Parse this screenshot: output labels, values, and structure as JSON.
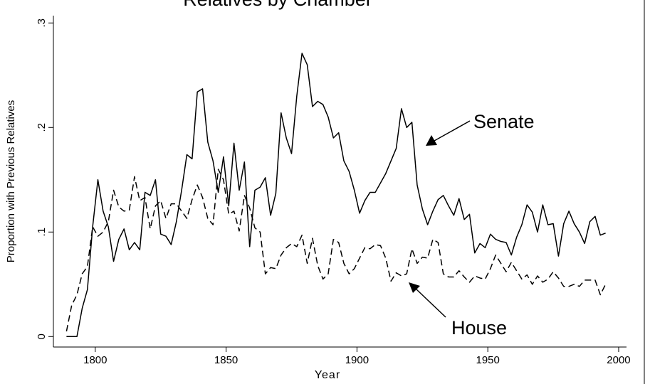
{
  "chart_data": {
    "type": "line",
    "title": "Relatives by Chamber",
    "x_label": "Year",
    "y_label": "Proportion with Previous Relatives",
    "x": [
      1789,
      1791,
      1793,
      1795,
      1797,
      1799,
      1801,
      1803,
      1805,
      1807,
      1809,
      1811,
      1813,
      1815,
      1817,
      1819,
      1821,
      1823,
      1825,
      1827,
      1829,
      1831,
      1833,
      1835,
      1837,
      1839,
      1841,
      1843,
      1845,
      1847,
      1849,
      1851,
      1853,
      1855,
      1857,
      1859,
      1861,
      1863,
      1865,
      1867,
      1869,
      1871,
      1873,
      1875,
      1877,
      1879,
      1881,
      1883,
      1885,
      1887,
      1889,
      1891,
      1893,
      1895,
      1897,
      1899,
      1901,
      1903,
      1905,
      1907,
      1909,
      1911,
      1913,
      1915,
      1917,
      1919,
      1921,
      1923,
      1925,
      1927,
      1929,
      1931,
      1933,
      1935,
      1937,
      1939,
      1941,
      1943,
      1945,
      1947,
      1949,
      1951,
      1953,
      1955,
      1957,
      1959,
      1961,
      1963,
      1965,
      1967,
      1969,
      1971,
      1973,
      1975,
      1977,
      1979,
      1981,
      1983,
      1985,
      1987,
      1989,
      1991,
      1993,
      1995
    ],
    "series": [
      {
        "name": "Senate",
        "color": "#000000",
        "line_style": "solid",
        "values": [
          0,
          0,
          0,
          0.027,
          0.045,
          0.105,
          0.15,
          0.12,
          0.105,
          0.072,
          0.093,
          0.103,
          0.083,
          0.09,
          0.083,
          0.138,
          0.135,
          0.15,
          0.098,
          0.096,
          0.088,
          0.11,
          0.14,
          0.174,
          0.17,
          0.234,
          0.237,
          0.186,
          0.168,
          0.138,
          0.172,
          0.125,
          0.185,
          0.14,
          0.167,
          0.086,
          0.14,
          0.143,
          0.152,
          0.116,
          0.137,
          0.214,
          0.19,
          0.175,
          0.23,
          0.271,
          0.26,
          0.22,
          0.225,
          0.222,
          0.21,
          0.19,
          0.195,
          0.168,
          0.158,
          0.14,
          0.118,
          0.13,
          0.138,
          0.138,
          0.147,
          0.156,
          0.168,
          0.18,
          0.218,
          0.2,
          0.205,
          0.145,
          0.122,
          0.107,
          0.12,
          0.131,
          0.135,
          0.125,
          0.116,
          0.132,
          0.112,
          0.117,
          0.08,
          0.089,
          0.085,
          0.098,
          0.093,
          0.091,
          0.09,
          0.078,
          0.095,
          0.107,
          0.126,
          0.119,
          0.1,
          0.126,
          0.107,
          0.108,
          0.077,
          0.108,
          0.12,
          0.108,
          0.1,
          0.089,
          0.11,
          0.115,
          0.097,
          0.099
        ]
      },
      {
        "name": "House",
        "color": "#000000",
        "line_style": "dashed",
        "values": [
          0.005,
          0.03,
          0.04,
          0.06,
          0.067,
          0.105,
          0.096,
          0.1,
          0.11,
          0.14,
          0.124,
          0.12,
          0.121,
          0.153,
          0.13,
          0.133,
          0.103,
          0.125,
          0.13,
          0.113,
          0.127,
          0.127,
          0.12,
          0.113,
          0.131,
          0.145,
          0.133,
          0.113,
          0.107,
          0.16,
          0.15,
          0.117,
          0.12,
          0.101,
          0.135,
          0.123,
          0.104,
          0.1,
          0.06,
          0.066,
          0.065,
          0.078,
          0.085,
          0.089,
          0.086,
          0.097,
          0.07,
          0.094,
          0.068,
          0.055,
          0.06,
          0.093,
          0.09,
          0.07,
          0.06,
          0.065,
          0.075,
          0.085,
          0.084,
          0.088,
          0.087,
          0.075,
          0.053,
          0.061,
          0.058,
          0.06,
          0.084,
          0.07,
          0.076,
          0.075,
          0.093,
          0.09,
          0.06,
          0.057,
          0.057,
          0.063,
          0.057,
          0.052,
          0.058,
          0.056,
          0.055,
          0.065,
          0.078,
          0.07,
          0.062,
          0.071,
          0.063,
          0.055,
          0.059,
          0.05,
          0.058,
          0.052,
          0.055,
          0.062,
          0.056,
          0.048,
          0.048,
          0.05,
          0.048,
          0.054,
          0.054,
          0.054,
          0.04,
          0.05
        ]
      }
    ],
    "xlim": [
      1784,
      2003
    ],
    "ylim": [
      -0.01,
      0.307
    ],
    "xticks": [
      1800,
      1850,
      1900,
      1950,
      2000
    ],
    "yticks": [
      0,
      {
        "value": 0.1,
        "label": ".1"
      },
      {
        "value": 0.2,
        "label": ".2"
      },
      {
        "value": 0.3,
        "label": ".3"
      }
    ],
    "grid": false,
    "legend": false
  }
}
